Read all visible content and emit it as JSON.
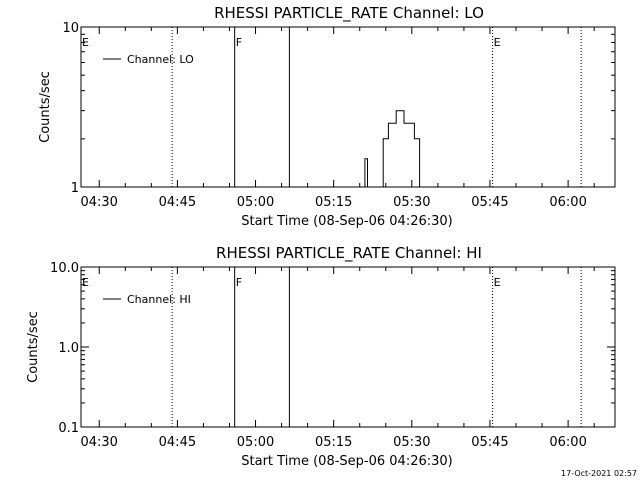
{
  "timestamp": "17-Oct-2021 02:57",
  "chart_data": [
    {
      "type": "line",
      "title": "RHESSI PARTICLE_RATE Channel: LO",
      "xlabel": "Start Time (08-Sep-06 04:26:30)",
      "ylabel": "Counts/sec",
      "yscale": "log",
      "ylim": [
        1,
        10
      ],
      "xlim": [
        "04:26:30",
        "06:09:00"
      ],
      "ytick_labels": [
        "1",
        "10"
      ],
      "xtick_labels": [
        "04:30",
        "04:45",
        "05:00",
        "05:15",
        "05:30",
        "05:45",
        "06:00"
      ],
      "legend": {
        "label": "Channel: LO",
        "placement": "top-left"
      },
      "markers": [
        {
          "time": "04:26:30",
          "style": "none",
          "label": "E"
        },
        {
          "time": "04:44:00",
          "style": "dotted",
          "label": ""
        },
        {
          "time": "04:56:00",
          "style": "solid",
          "label": "F"
        },
        {
          "time": "05:06:30",
          "style": "solid",
          "label": ""
        },
        {
          "time": "05:45:30",
          "style": "dotted",
          "label": "E"
        },
        {
          "time": "06:02:30",
          "style": "dotted",
          "label": ""
        }
      ],
      "series": [
        {
          "name": "Channel: LO",
          "x": [
            "05:21:00",
            "05:21:00",
            "05:21:30",
            "05:21:30",
            "05:24:30",
            "05:24:30",
            "05:25:30",
            "05:25:30",
            "05:27:00",
            "05:27:00",
            "05:28:30",
            "05:28:30",
            "05:30:30",
            "05:30:30",
            "05:31:30",
            "05:31:30"
          ],
          "y": [
            1,
            1.5,
            1.5,
            1,
            1,
            2,
            2,
            2.5,
            2.5,
            3,
            3,
            2.5,
            2.5,
            2,
            2,
            1
          ]
        }
      ]
    },
    {
      "type": "line",
      "title": "RHESSI PARTICLE_RATE Channel: HI",
      "xlabel": "Start Time (08-Sep-06 04:26:30)",
      "ylabel": "Counts/sec",
      "yscale": "log",
      "ylim": [
        0.1,
        10
      ],
      "xlim": [
        "04:26:30",
        "06:09:00"
      ],
      "ytick_labels": [
        "0.1",
        "1.0",
        "10.0"
      ],
      "xtick_labels": [
        "04:30",
        "04:45",
        "05:00",
        "05:15",
        "05:30",
        "05:45",
        "06:00"
      ],
      "legend": {
        "label": "Channel: HI",
        "placement": "top-left"
      },
      "markers": [
        {
          "time": "04:26:30",
          "style": "none",
          "label": "E"
        },
        {
          "time": "04:44:00",
          "style": "dotted",
          "label": ""
        },
        {
          "time": "04:56:00",
          "style": "solid",
          "label": "F"
        },
        {
          "time": "05:06:30",
          "style": "solid",
          "label": ""
        },
        {
          "time": "05:45:30",
          "style": "dotted",
          "label": "E"
        },
        {
          "time": "06:02:30",
          "style": "dotted",
          "label": ""
        }
      ],
      "series": [
        {
          "name": "Channel: HI",
          "x": [],
          "y": []
        }
      ]
    }
  ]
}
